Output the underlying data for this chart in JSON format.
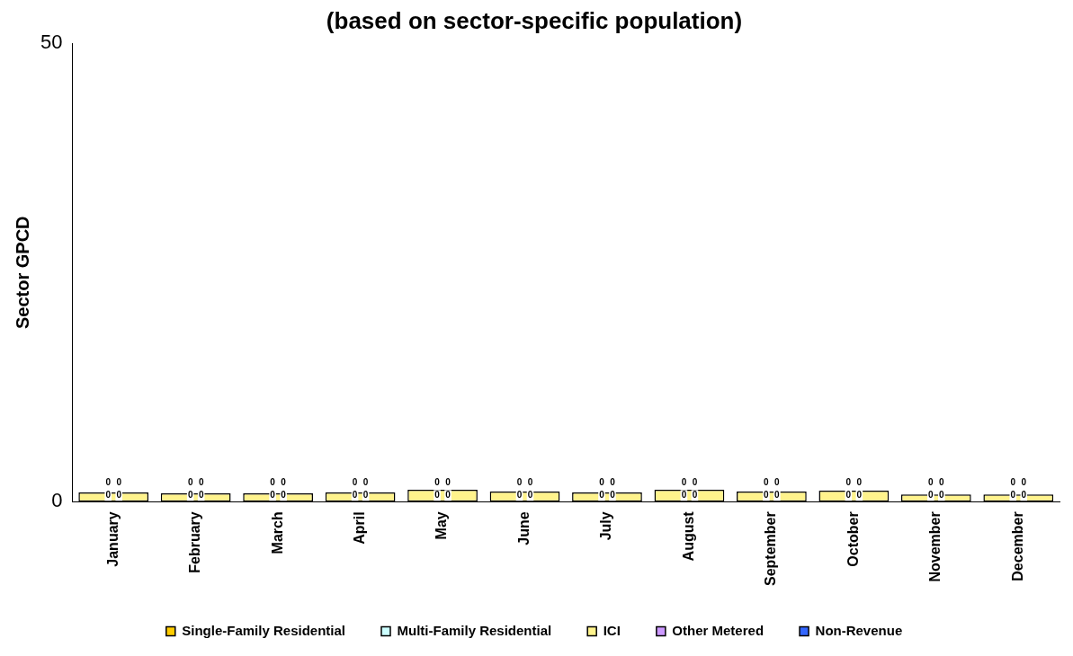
{
  "chart_data": {
    "type": "bar",
    "title": "(based on sector-specific population)",
    "ylabel": "Sector GPCD",
    "categories": [
      "January",
      "February",
      "March",
      "April",
      "May",
      "June",
      "July",
      "August",
      "September",
      "October",
      "November",
      "December"
    ],
    "stacked": true,
    "ylim": [
      0,
      50
    ],
    "yticks": [
      0,
      50
    ],
    "grid": false,
    "legend": "bottom",
    "series": [
      {
        "name": "Single-Family Residential",
        "color": "#ffcc00",
        "values": [
          0,
          0,
          0,
          0,
          0,
          0,
          0,
          0,
          0,
          0,
          0,
          0
        ],
        "value_labels": [
          "0",
          "0",
          "0",
          "0",
          "0",
          "0",
          "0",
          "0",
          "0",
          "0",
          "0",
          "0"
        ]
      },
      {
        "name": "Multi-Family Residential",
        "color": "#ccffff",
        "values": [
          0,
          0,
          0,
          0,
          0,
          0,
          0,
          0,
          0,
          0,
          0,
          0
        ],
        "value_labels": [
          "0",
          "0",
          "0",
          "0",
          "0",
          "0",
          "0",
          "0",
          "0",
          "0",
          "0",
          "0"
        ]
      },
      {
        "name": "ICI",
        "color": "#fff38c",
        "values": [
          1.0,
          0.9,
          0.9,
          1.0,
          1.3,
          1.1,
          1.0,
          1.3,
          1.1,
          1.2,
          0.8,
          0.8
        ]
      },
      {
        "name": "Other Metered",
        "color": "#cc99ff",
        "values": [
          0,
          0,
          0,
          0,
          0,
          0,
          0,
          0,
          0,
          0,
          0,
          0
        ],
        "value_labels": [
          "0",
          "0",
          "0",
          "0",
          "0",
          "0",
          "0",
          "0",
          "0",
          "0",
          "0",
          "0"
        ]
      },
      {
        "name": "Non-Revenue",
        "color": "#3366ff",
        "values": [
          0,
          0,
          0,
          0,
          0,
          0,
          0,
          0,
          0,
          0,
          0,
          0
        ],
        "value_labels": [
          "0",
          "0",
          "0",
          "0",
          "0",
          "0",
          "0",
          "0",
          "0",
          "0",
          "0",
          "0"
        ]
      }
    ]
  }
}
